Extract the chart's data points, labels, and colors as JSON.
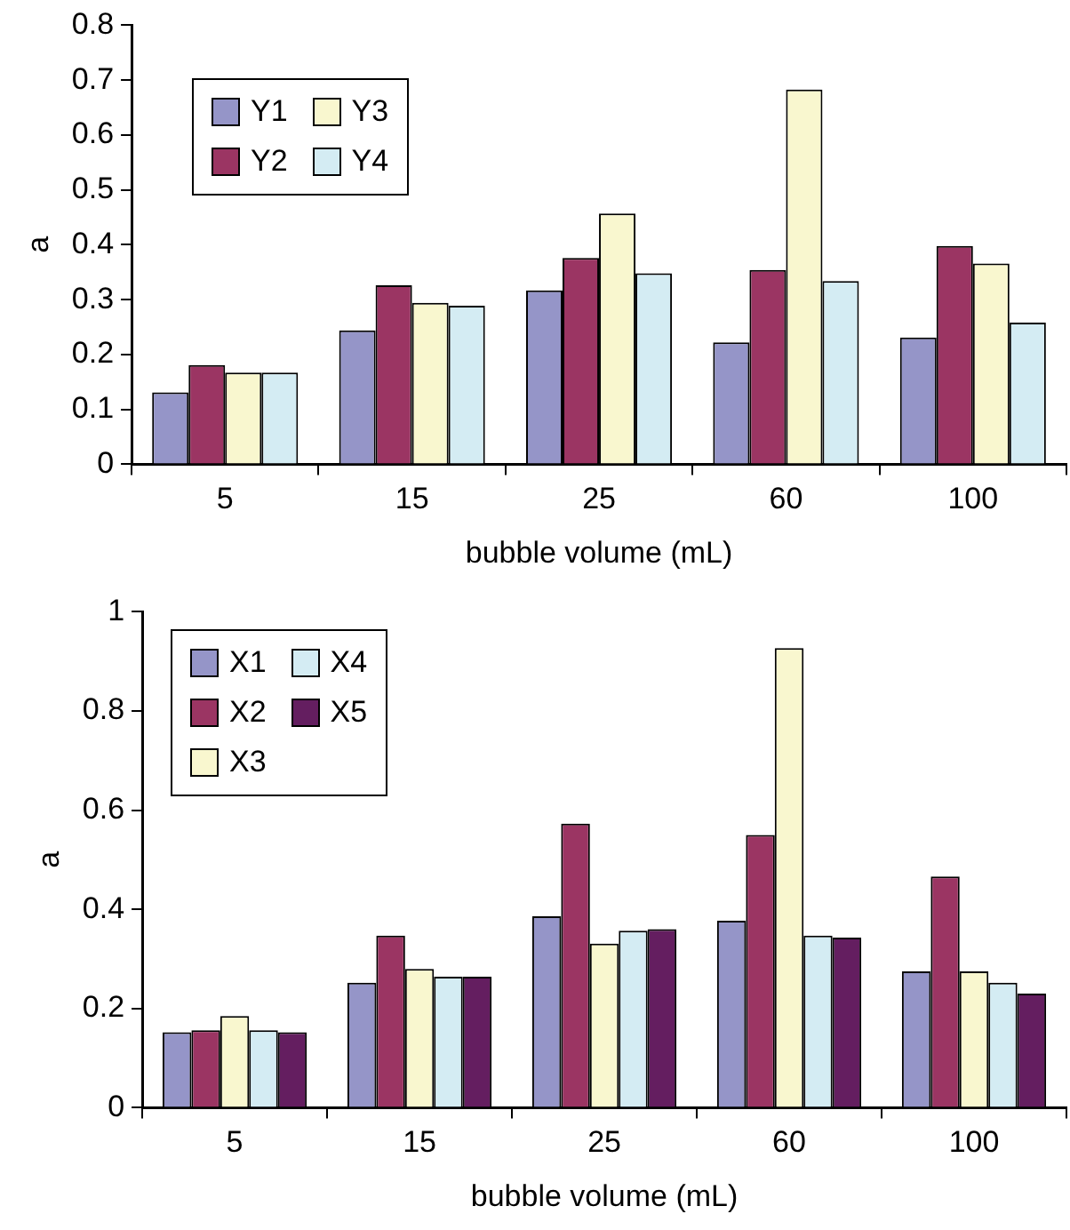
{
  "chart_data": [
    {
      "type": "bar",
      "xlabel": "bubble volume (mL)",
      "ylabel": "a",
      "categories": [
        "5",
        "15",
        "25",
        "60",
        "100"
      ],
      "ylim": [
        0,
        0.8
      ],
      "yticks": [
        0,
        0.1,
        0.2,
        0.3,
        0.4,
        0.5,
        0.6,
        0.7,
        0.8
      ],
      "grid": false,
      "legend": "top left",
      "series": [
        {
          "name": "Y1",
          "color": "#9595c8",
          "values": [
            0.131,
            0.244,
            0.317,
            0.222,
            0.231
          ]
        },
        {
          "name": "Y2",
          "color": "#9b3563",
          "values": [
            0.181,
            0.326,
            0.376,
            0.354,
            0.398
          ]
        },
        {
          "name": "Y3",
          "color": "#f9f7cf",
          "values": [
            0.167,
            0.294,
            0.457,
            0.683,
            0.366
          ]
        },
        {
          "name": "Y4",
          "color": "#d4ecf3",
          "values": [
            0.167,
            0.289,
            0.348,
            0.334,
            0.258
          ]
        }
      ]
    },
    {
      "type": "bar",
      "xlabel": "bubble volume (mL)",
      "ylabel": "a",
      "categories": [
        "5",
        "15",
        "25",
        "60",
        "100"
      ],
      "ylim": [
        0,
        1
      ],
      "yticks": [
        0,
        0.2,
        0.4,
        0.6,
        0.8,
        1
      ],
      "grid": false,
      "legend": "top left",
      "series": [
        {
          "name": "X1",
          "color": "#9595c8",
          "values": [
            0.152,
            0.252,
            0.386,
            0.377,
            0.275
          ]
        },
        {
          "name": "X2",
          "color": "#9b3563",
          "values": [
            0.156,
            0.347,
            0.573,
            0.55,
            0.466
          ]
        },
        {
          "name": "X3",
          "color": "#f9f7cf",
          "values": [
            0.185,
            0.28,
            0.331,
            0.927,
            0.275
          ]
        },
        {
          "name": "X4",
          "color": "#d4ecf3",
          "values": [
            0.156,
            0.264,
            0.357,
            0.347,
            0.252
          ]
        },
        {
          "name": "X5",
          "color": "#641e60",
          "values": [
            0.152,
            0.264,
            0.36,
            0.343,
            0.23
          ]
        }
      ]
    }
  ]
}
